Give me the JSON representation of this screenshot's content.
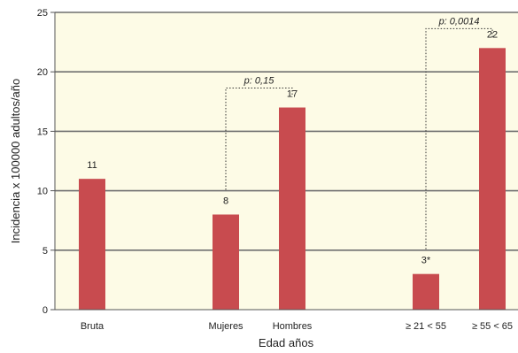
{
  "chart_data": {
    "type": "bar",
    "xlabel": "Edad años",
    "ylabel": "Incidencia x 100000 adultos/año",
    "ylim": [
      0,
      25
    ],
    "yticks": [
      0,
      5,
      10,
      15,
      20,
      25
    ],
    "grid": true,
    "categories": [
      "Bruta",
      "Mujeres",
      "Hombres",
      "≥ 21 < 55",
      "≥ 55 < 65"
    ],
    "values": [
      11,
      8,
      17,
      3,
      22
    ],
    "value_labels": [
      "11",
      "8",
      "17",
      "3*",
      "22"
    ],
    "comparisons": [
      {
        "from": "Mujeres",
        "to": "Hombres",
        "label": "p: 0,15"
      },
      {
        "from": "≥ 21 < 55",
        "to": "≥ 55 < 65",
        "label": "p: 0,0014"
      }
    ]
  },
  "colors": {
    "bar": "#c84b4f",
    "plot_background": "#fdfbe6",
    "grid": "#6f6f6f",
    "axis": "#555555"
  }
}
